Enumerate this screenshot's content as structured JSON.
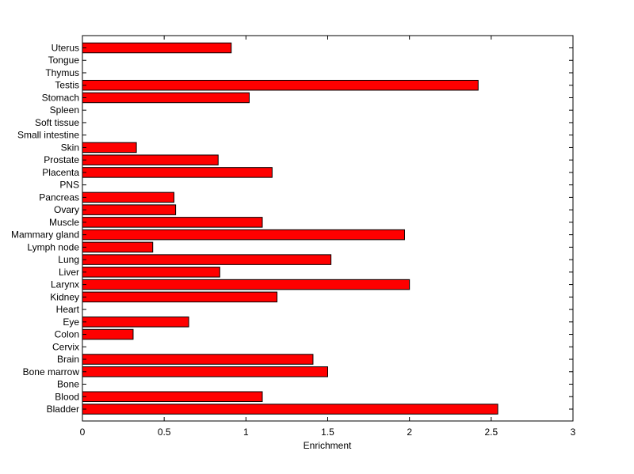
{
  "chart_data": {
    "type": "bar",
    "orientation": "horizontal",
    "categories": [
      "Uterus",
      "Tongue",
      "Thymus",
      "Testis",
      "Stomach",
      "Spleen",
      "Soft tissue",
      "Small intestine",
      "Skin",
      "Prostate",
      "Placenta",
      "PNS",
      "Pancreas",
      "Ovary",
      "Muscle",
      "Mammary gland",
      "Lymph node",
      "Lung",
      "Liver",
      "Larynx",
      "Kidney",
      "Heart",
      "Eye",
      "Colon",
      "Cervix",
      "Brain",
      "Bone marrow",
      "Bone",
      "Blood",
      "Bladder"
    ],
    "values": [
      0.91,
      0,
      0,
      2.42,
      1.02,
      0,
      0,
      0,
      0.33,
      0.83,
      1.16,
      0,
      0.56,
      0.57,
      1.1,
      1.97,
      0.43,
      1.52,
      0.84,
      2.0,
      1.19,
      0,
      0.65,
      0.31,
      0,
      1.41,
      1.5,
      0,
      1.1,
      2.54
    ],
    "title": "",
    "xlabel": "Enrichment",
    "ylabel": "",
    "xlim": [
      0,
      3
    ],
    "xticks": [
      "0",
      "0.5",
      "1",
      "1.5",
      "2",
      "2.5",
      "3"
    ],
    "grid": false,
    "bar_color": "#ff0000",
    "bar_edge_color": "#000000"
  }
}
